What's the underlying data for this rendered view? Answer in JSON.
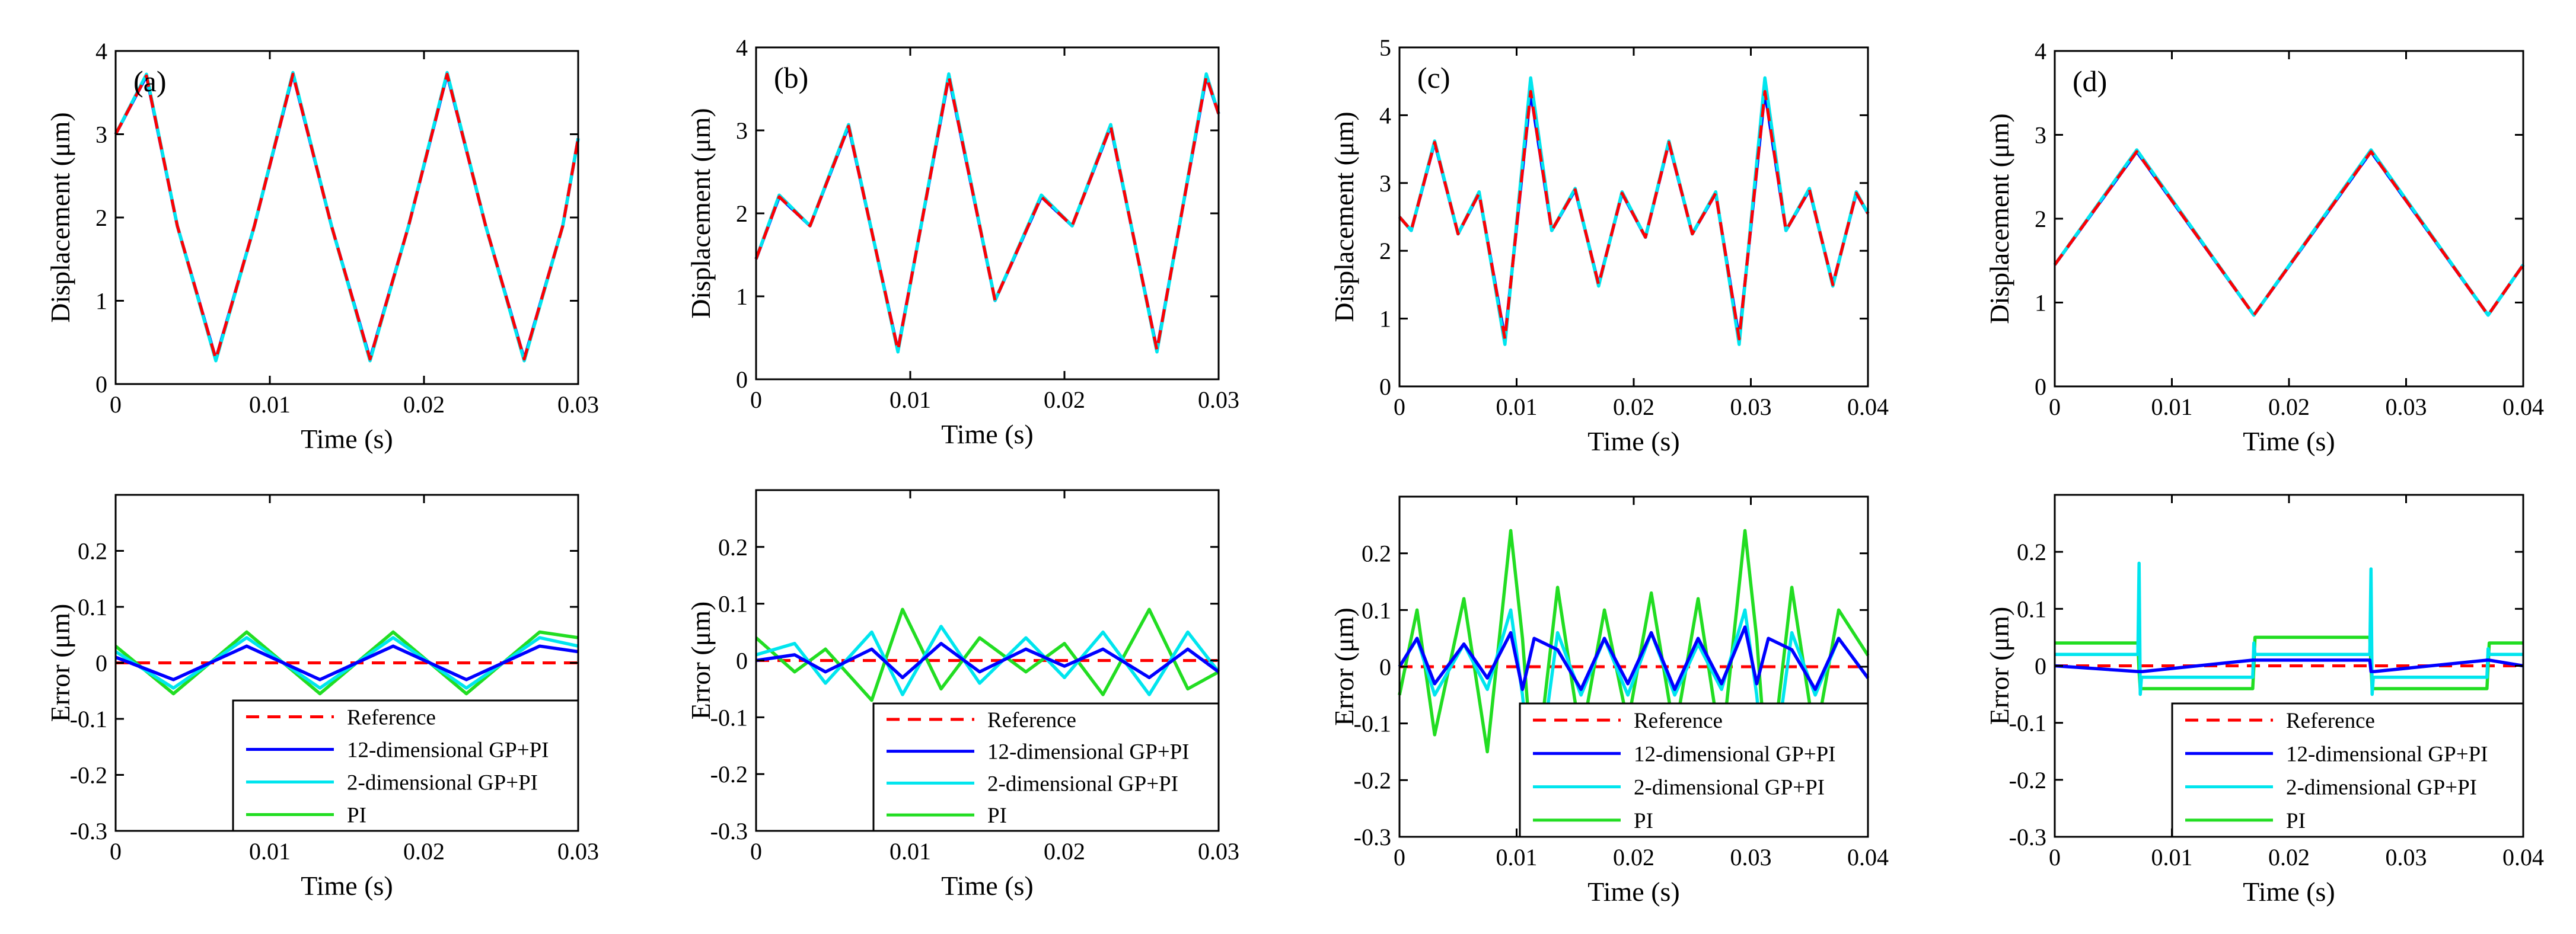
{
  "chart_data": [
    {
      "type": "line",
      "panel_label": "(a)",
      "xlabel": "Time (s)",
      "ylabel": "Displacement (μm)",
      "xlim": [
        0,
        0.03
      ],
      "ylim": [
        0,
        4
      ],
      "xticks": [
        0,
        0.01,
        0.02,
        0.03
      ],
      "xtick_labels": [
        "0",
        "0.01",
        "0.02",
        "0.03"
      ],
      "yticks": [
        0,
        1,
        2,
        3,
        4
      ],
      "ytick_labels": [
        "0",
        "1",
        "2",
        "3",
        "4"
      ],
      "x": [
        0,
        0.002,
        0.004,
        0.0065,
        0.009,
        0.0115,
        0.014,
        0.0165,
        0.019,
        0.0215,
        0.024,
        0.0265,
        0.029,
        0.03
      ],
      "series": [
        {
          "name": "12-dimensional GP+PI",
          "color": "#0000ff",
          "values": [
            3.0,
            3.7,
            1.9,
            0.3,
            1.9,
            3.72,
            1.9,
            0.3,
            1.9,
            3.72,
            1.9,
            0.3,
            1.9,
            2.95
          ]
        },
        {
          "name": "2-dimensional GP+PI",
          "color": "#00e5ee",
          "values": [
            3.0,
            3.72,
            1.9,
            0.28,
            1.9,
            3.74,
            1.9,
            0.28,
            1.9,
            3.74,
            1.9,
            0.28,
            1.9,
            2.95
          ]
        },
        {
          "name": "Reference",
          "color": "#ff0000",
          "dashed": true,
          "values": [
            3.0,
            3.7,
            1.9,
            0.3,
            1.9,
            3.72,
            1.9,
            0.3,
            1.9,
            3.72,
            1.9,
            0.3,
            1.9,
            2.95
          ]
        }
      ]
    },
    {
      "type": "line",
      "panel_label": "(b)",
      "xlabel": "Time (s)",
      "ylabel": "Displacement (μm)",
      "xlim": [
        0,
        0.03
      ],
      "ylim": [
        0,
        4
      ],
      "xticks": [
        0,
        0.01,
        0.02,
        0.03
      ],
      "xtick_labels": [
        "0",
        "0.01",
        "0.02",
        "0.03"
      ],
      "yticks": [
        0,
        1,
        2,
        3,
        4
      ],
      "ytick_labels": [
        "0",
        "1",
        "2",
        "3",
        "4"
      ],
      "x": [
        0,
        0.0015,
        0.0035,
        0.006,
        0.0092,
        0.0125,
        0.0155,
        0.0185,
        0.0205,
        0.023,
        0.026,
        0.0292,
        0.03
      ],
      "series": [
        {
          "name": "12-dimensional GP+PI",
          "color": "#0000ff",
          "values": [
            1.45,
            2.2,
            1.85,
            3.05,
            0.35,
            3.65,
            0.95,
            2.2,
            1.85,
            3.05,
            0.35,
            3.65,
            3.2
          ]
        },
        {
          "name": "2-dimensional GP+PI",
          "color": "#00e5ee",
          "values": [
            1.45,
            2.22,
            1.85,
            3.07,
            0.33,
            3.68,
            0.95,
            2.22,
            1.85,
            3.07,
            0.33,
            3.68,
            3.2
          ]
        },
        {
          "name": "Reference",
          "color": "#ff0000",
          "dashed": true,
          "values": [
            1.45,
            2.2,
            1.85,
            3.05,
            0.35,
            3.65,
            0.95,
            2.2,
            1.85,
            3.05,
            0.35,
            3.65,
            3.2
          ]
        }
      ]
    },
    {
      "type": "line",
      "panel_label": "(c)",
      "xlabel": "Time (s)",
      "ylabel": "Displacement (μm)",
      "xlim": [
        0,
        0.04
      ],
      "ylim": [
        0,
        5
      ],
      "xticks": [
        0,
        0.01,
        0.02,
        0.03,
        0.04
      ],
      "xtick_labels": [
        "0",
        "0.01",
        "0.02",
        "0.03",
        "0.04"
      ],
      "yticks": [
        0,
        1,
        2,
        3,
        4,
        5
      ],
      "ytick_labels": [
        "0",
        "1",
        "2",
        "3",
        "4",
        "5"
      ],
      "x": [
        0,
        0.001,
        0.003,
        0.005,
        0.0068,
        0.009,
        0.0112,
        0.013,
        0.015,
        0.017,
        0.019,
        0.021,
        0.023,
        0.025,
        0.027,
        0.029,
        0.0312,
        0.033,
        0.035,
        0.037,
        0.039,
        0.04
      ],
      "series": [
        {
          "name": "12-dimensional GP+PI",
          "color": "#0000ff",
          "values": [
            2.5,
            2.3,
            3.6,
            2.25,
            2.85,
            0.7,
            4.35,
            2.3,
            2.9,
            1.5,
            2.85,
            2.2,
            3.6,
            2.25,
            2.85,
            0.7,
            4.35,
            2.3,
            2.9,
            1.5,
            2.85,
            2.55
          ]
        },
        {
          "name": "2-dimensional GP+PI",
          "color": "#00e5ee",
          "values": [
            2.5,
            2.3,
            3.62,
            2.25,
            2.87,
            0.62,
            4.55,
            2.3,
            2.92,
            1.48,
            2.87,
            2.2,
            3.62,
            2.25,
            2.87,
            0.62,
            4.55,
            2.3,
            2.92,
            1.48,
            2.87,
            2.55
          ]
        },
        {
          "name": "Reference",
          "color": "#ff0000",
          "dashed": true,
          "values": [
            2.5,
            2.3,
            3.6,
            2.25,
            2.85,
            0.7,
            4.35,
            2.3,
            2.9,
            1.5,
            2.85,
            2.2,
            3.6,
            2.25,
            2.85,
            0.7,
            4.35,
            2.3,
            2.9,
            1.5,
            2.85,
            2.55
          ]
        }
      ]
    },
    {
      "type": "line",
      "panel_label": "(d)",
      "xlabel": "Time (s)",
      "ylabel": "Displacement (μm)",
      "xlim": [
        0,
        0.04
      ],
      "ylim": [
        0,
        4
      ],
      "xticks": [
        0,
        0.01,
        0.02,
        0.03,
        0.04
      ],
      "xtick_labels": [
        "0",
        "0.01",
        "0.02",
        "0.03",
        "0.04"
      ],
      "yticks": [
        0,
        1,
        2,
        3,
        4
      ],
      "ytick_labels": [
        "0",
        "1",
        "2",
        "3",
        "4"
      ],
      "x": [
        0,
        0.007,
        0.017,
        0.027,
        0.037,
        0.04
      ],
      "series": [
        {
          "name": "12-dimensional GP+PI",
          "color": "#0000ff",
          "values": [
            1.45,
            2.8,
            0.85,
            2.8,
            0.85,
            1.45
          ]
        },
        {
          "name": "2-dimensional GP+PI",
          "color": "#00e5ee",
          "values": [
            1.45,
            2.82,
            0.85,
            2.82,
            0.85,
            1.45
          ]
        },
        {
          "name": "Reference",
          "color": "#ff0000",
          "dashed": true,
          "values": [
            1.45,
            2.8,
            0.85,
            2.8,
            0.85,
            1.45
          ]
        }
      ]
    },
    {
      "type": "line",
      "xlabel": "Time (s)",
      "ylabel": "Error (μm)",
      "xlim": [
        0,
        0.03
      ],
      "ylim": [
        -0.3,
        0.3
      ],
      "xticks": [
        0,
        0.01,
        0.02,
        0.03
      ],
      "xtick_labels": [
        "0",
        "0.01",
        "0.02",
        "0.03"
      ],
      "yticks": [
        -0.3,
        -0.2,
        -0.1,
        0,
        0.1,
        0.2
      ],
      "ytick_labels": [
        "-0.3",
        "-0.2",
        "-0.1",
        "0",
        "0.1",
        "0.2"
      ],
      "legend": [
        "Reference",
        "12-dimensional GP+PI",
        "2-dimensional GP+PI",
        "PI"
      ],
      "legend_position": "bottom-right",
      "x": [
        0,
        0.00375,
        0.0085,
        0.01325,
        0.018,
        0.02275,
        0.0275,
        0.03
      ],
      "series": [
        {
          "name": "Reference",
          "color": "#ff0000",
          "dashed": true,
          "values": [
            0,
            0,
            0,
            0,
            0,
            0,
            0,
            0
          ]
        },
        {
          "name": "PI",
          "color": "#22dd22",
          "values": [
            0.03,
            -0.055,
            0.055,
            -0.055,
            0.055,
            -0.055,
            0.055,
            0.045
          ]
        },
        {
          "name": "2-dimensional GP+PI",
          "color": "#00e5ee",
          "values": [
            0.02,
            -0.045,
            0.045,
            -0.045,
            0.045,
            -0.045,
            0.045,
            0.03
          ]
        },
        {
          "name": "12-dimensional GP+PI",
          "color": "#0000ff",
          "values": [
            0.01,
            -0.03,
            0.03,
            -0.03,
            0.03,
            -0.03,
            0.03,
            0.02
          ]
        }
      ]
    },
    {
      "type": "line",
      "xlabel": "Time (s)",
      "ylabel": "Error (μm)",
      "xlim": [
        0,
        0.03
      ],
      "ylim": [
        -0.3,
        0.3
      ],
      "xticks": [
        0,
        0.01,
        0.02,
        0.03
      ],
      "xtick_labels": [
        "0",
        "0.01",
        "0.02",
        "0.03"
      ],
      "yticks": [
        -0.3,
        -0.2,
        -0.1,
        0,
        0.1,
        0.2
      ],
      "ytick_labels": [
        "-0.3",
        "-0.2",
        "-0.1",
        "0",
        "0.1",
        "0.2"
      ],
      "legend": [
        "Reference",
        "12-dimensional GP+PI",
        "2-dimensional GP+PI",
        "PI"
      ],
      "legend_position": "bottom-right",
      "x": [
        0,
        0.0025,
        0.0045,
        0.0075,
        0.0095,
        0.012,
        0.0145,
        0.0175,
        0.02,
        0.0225,
        0.0255,
        0.028,
        0.03
      ],
      "series": [
        {
          "name": "Reference",
          "color": "#ff0000",
          "dashed": true,
          "values": [
            0,
            0,
            0,
            0,
            0,
            0,
            0,
            0,
            0,
            0,
            0,
            0,
            0
          ]
        },
        {
          "name": "PI",
          "color": "#22dd22",
          "values": [
            0.04,
            -0.02,
            0.02,
            -0.07,
            0.09,
            -0.05,
            0.04,
            -0.02,
            0.03,
            -0.06,
            0.09,
            -0.05,
            -0.02
          ]
        },
        {
          "name": "2-dimensional GP+PI",
          "color": "#00e5ee",
          "values": [
            0.01,
            0.03,
            -0.04,
            0.05,
            -0.06,
            0.06,
            -0.04,
            0.04,
            -0.03,
            0.05,
            -0.06,
            0.05,
            -0.02
          ]
        },
        {
          "name": "12-dimensional GP+PI",
          "color": "#0000ff",
          "values": [
            0.0,
            0.01,
            -0.02,
            0.02,
            -0.03,
            0.03,
            -0.02,
            0.02,
            -0.01,
            0.02,
            -0.03,
            0.02,
            -0.02
          ]
        }
      ]
    },
    {
      "type": "line",
      "xlabel": "Time (s)",
      "ylabel": "Error (μm)",
      "xlim": [
        0,
        0.04
      ],
      "ylim": [
        -0.3,
        0.3
      ],
      "xticks": [
        0,
        0.01,
        0.02,
        0.03,
        0.04
      ],
      "xtick_labels": [
        "0",
        "0.01",
        "0.02",
        "0.03",
        "0.04"
      ],
      "yticks": [
        -0.3,
        -0.2,
        -0.1,
        0,
        0.1,
        0.2
      ],
      "ytick_labels": [
        "-0.3",
        "-0.2",
        "-0.1",
        "0",
        "0.1",
        "0.2"
      ],
      "legend": [
        "Reference",
        "12-dimensional GP+PI",
        "2-dimensional GP+PI",
        "PI"
      ],
      "legend_position": "bottom-right",
      "x": [
        0,
        0.0015,
        0.003,
        0.0055,
        0.0075,
        0.0095,
        0.0105,
        0.0115,
        0.0135,
        0.0155,
        0.0175,
        0.0195,
        0.0215,
        0.0235,
        0.0255,
        0.0275,
        0.0295,
        0.0305,
        0.0315,
        0.0335,
        0.0355,
        0.0375,
        0.04
      ],
      "series": [
        {
          "name": "Reference",
          "color": "#ff0000",
          "dashed": true,
          "values": [
            0,
            0,
            0,
            0,
            0,
            0,
            0,
            0,
            0,
            0,
            0,
            0,
            0,
            0,
            0,
            0,
            0,
            0,
            0,
            0,
            0,
            0,
            0
          ]
        },
        {
          "name": "PI",
          "color": "#22dd22",
          "values": [
            -0.05,
            0.1,
            -0.12,
            0.12,
            -0.15,
            0.24,
            0.05,
            -0.22,
            0.14,
            -0.13,
            0.1,
            -0.1,
            0.13,
            -0.12,
            0.12,
            -0.15,
            0.24,
            0.05,
            -0.22,
            0.14,
            -0.13,
            0.1,
            0.02
          ]
        },
        {
          "name": "2-dimensional GP+PI",
          "color": "#00e5ee",
          "values": [
            0.0,
            0.05,
            -0.05,
            0.04,
            -0.04,
            0.1,
            -0.05,
            -0.25,
            0.06,
            -0.05,
            0.05,
            -0.05,
            0.06,
            -0.05,
            0.04,
            -0.04,
            0.1,
            -0.05,
            -0.25,
            0.06,
            -0.05,
            0.05,
            -0.02
          ]
        },
        {
          "name": "12-dimensional GP+PI",
          "color": "#0000ff",
          "values": [
            0.0,
            0.05,
            -0.03,
            0.04,
            -0.02,
            0.06,
            -0.04,
            0.05,
            0.03,
            -0.04,
            0.05,
            -0.03,
            0.06,
            -0.04,
            0.05,
            -0.03,
            0.07,
            -0.03,
            0.05,
            0.03,
            -0.04,
            0.05,
            -0.02
          ]
        }
      ]
    },
    {
      "type": "line",
      "xlabel": "Time (s)",
      "ylabel": "Error (μm)",
      "xlim": [
        0,
        0.04
      ],
      "ylim": [
        -0.3,
        0.3
      ],
      "xticks": [
        0,
        0.01,
        0.02,
        0.03,
        0.04
      ],
      "xtick_labels": [
        "0",
        "0.01",
        "0.02",
        "0.03",
        "0.04"
      ],
      "yticks": [
        -0.3,
        -0.2,
        -0.1,
        0,
        0.1,
        0.2
      ],
      "ytick_labels": [
        "-0.3",
        "-0.2",
        "-0.1",
        "0",
        "0.1",
        "0.2"
      ],
      "legend": [
        "Reference",
        "12-dimensional GP+PI",
        "2-dimensional GP+PI",
        "PI"
      ],
      "legend_position": "bottom-right",
      "x": [
        0,
        0.0071,
        0.0072,
        0.0073,
        0.0074,
        0.0075,
        0.0169,
        0.017,
        0.0171,
        0.0269,
        0.027,
        0.0271,
        0.0272,
        0.0273,
        0.0369,
        0.037,
        0.0371,
        0.04
      ],
      "series": [
        {
          "name": "Reference",
          "color": "#ff0000",
          "dashed": true,
          "values": [
            0,
            0,
            0,
            0,
            0,
            0,
            0,
            0,
            0,
            0,
            0,
            0,
            0,
            0,
            0,
            0,
            0,
            0
          ]
        },
        {
          "name": "PI",
          "color": "#22dd22",
          "values": [
            0.04,
            0.04,
            -0.01,
            -0.04,
            -0.04,
            -0.04,
            -0.04,
            0.0,
            0.05,
            0.05,
            0.0,
            -0.04,
            -0.04,
            -0.04,
            -0.04,
            0.0,
            0.04,
            0.04
          ]
        },
        {
          "name": "2-dimensional GP+PI",
          "color": "#00e5ee",
          "values": [
            0.02,
            0.02,
            0.18,
            -0.05,
            -0.02,
            -0.02,
            -0.02,
            0.04,
            0.02,
            0.02,
            0.17,
            -0.05,
            -0.02,
            -0.02,
            -0.02,
            0.03,
            0.02,
            0.02
          ]
        },
        {
          "name": "12-dimensional GP+PI",
          "color": "#0000ff",
          "values": [
            0.0,
            -0.01,
            -0.01,
            -0.01,
            -0.01,
            -0.01,
            0.01,
            0.01,
            0.01,
            0.01,
            -0.01,
            -0.01,
            -0.01,
            -0.01,
            0.01,
            0.01,
            0.01,
            0.0
          ]
        }
      ]
    }
  ]
}
